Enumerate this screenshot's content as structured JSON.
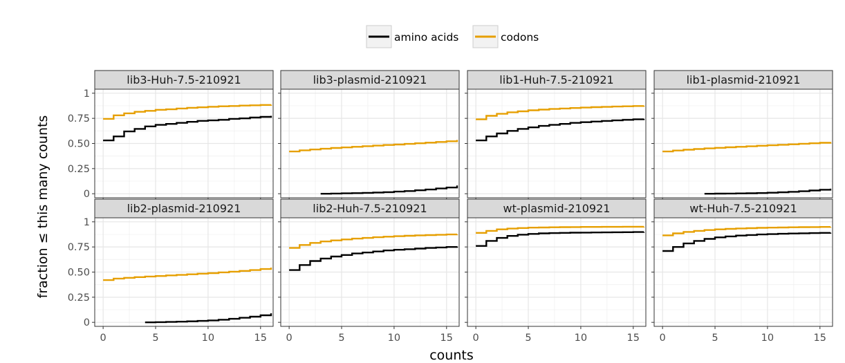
{
  "chart_data": {
    "type": "line",
    "subtype": "step-ecdf",
    "xlabel": "counts",
    "ylabel": "fraction ≤ this many counts",
    "xlim": [
      -0.8,
      16.2
    ],
    "ylim": [
      -0.04,
      1.04
    ],
    "x_ticks": [
      0,
      5,
      10,
      15
    ],
    "x_tick_labels": [
      "0",
      "5",
      "10",
      "15"
    ],
    "y_ticks": [
      0,
      0.25,
      0.5,
      0.75,
      1
    ],
    "y_tick_labels": [
      "0",
      "0.25",
      "0.50",
      "0.75",
      "1"
    ],
    "grid": true,
    "legend": {
      "placement": "top",
      "entries": [
        {
          "key": "amino_acids",
          "label": "amino acids",
          "color": "#000000"
        },
        {
          "key": "codons",
          "label": "codons",
          "color": "#e69f00"
        }
      ]
    },
    "facets": [
      {
        "title": "lib3-Huh-7.5-210921",
        "series": {
          "amino_acids": {
            "x": [
              0,
              1,
              2,
              3,
              4,
              5,
              6,
              7,
              8,
              9,
              10,
              11,
              12,
              13,
              14,
              15,
              16
            ],
            "y": [
              0.53,
              0.57,
              0.62,
              0.645,
              0.67,
              0.685,
              0.695,
              0.705,
              0.715,
              0.725,
              0.73,
              0.735,
              0.745,
              0.75,
              0.758,
              0.765,
              0.775
            ]
          },
          "codons": {
            "x": [
              0,
              1,
              2,
              3,
              4,
              5,
              6,
              7,
              8,
              9,
              10,
              11,
              12,
              13,
              14,
              15,
              16
            ],
            "y": [
              0.745,
              0.78,
              0.8,
              0.815,
              0.825,
              0.835,
              0.84,
              0.848,
              0.855,
              0.86,
              0.865,
              0.87,
              0.873,
              0.877,
              0.88,
              0.883,
              0.886
            ]
          }
        }
      },
      {
        "title": "lib3-plasmid-210921",
        "series": {
          "amino_acids": {
            "x": [
              3,
              4,
              5,
              6,
              7,
              8,
              9,
              10,
              11,
              12,
              13,
              14,
              15,
              16
            ],
            "y": [
              0.0,
              0.002,
              0.004,
              0.006,
              0.009,
              0.012,
              0.016,
              0.021,
              0.027,
              0.034,
              0.042,
              0.052,
              0.062,
              0.082
            ]
          },
          "codons": {
            "x": [
              0,
              1,
              2,
              3,
              4,
              5,
              6,
              7,
              8,
              9,
              10,
              11,
              12,
              13,
              14,
              15,
              16
            ],
            "y": [
              0.42,
              0.432,
              0.44,
              0.448,
              0.455,
              0.461,
              0.467,
              0.473,
              0.479,
              0.485,
              0.49,
              0.496,
              0.502,
              0.508,
              0.515,
              0.522,
              0.535
            ]
          }
        }
      },
      {
        "title": "lib1-Huh-7.5-210921",
        "series": {
          "amino_acids": {
            "x": [
              0,
              1,
              2,
              3,
              4,
              5,
              6,
              7,
              8,
              9,
              10,
              11,
              12,
              13,
              14,
              15,
              16
            ],
            "y": [
              0.53,
              0.57,
              0.6,
              0.625,
              0.645,
              0.66,
              0.675,
              0.685,
              0.695,
              0.705,
              0.712,
              0.718,
              0.724,
              0.73,
              0.735,
              0.74,
              0.745
            ]
          },
          "codons": {
            "x": [
              0,
              1,
              2,
              3,
              4,
              5,
              6,
              7,
              8,
              9,
              10,
              11,
              12,
              13,
              14,
              15,
              16
            ],
            "y": [
              0.74,
              0.775,
              0.795,
              0.81,
              0.82,
              0.83,
              0.837,
              0.843,
              0.848,
              0.853,
              0.857,
              0.861,
              0.864,
              0.867,
              0.87,
              0.873,
              0.876
            ]
          }
        }
      },
      {
        "title": "lib1-plasmid-210921",
        "series": {
          "amino_acids": {
            "x": [
              4,
              5,
              6,
              7,
              8,
              9,
              10,
              11,
              12,
              13,
              14,
              15,
              16
            ],
            "y": [
              0.0,
              0.001,
              0.002,
              0.003,
              0.005,
              0.007,
              0.01,
              0.014,
              0.019,
              0.025,
              0.032,
              0.04,
              0.05
            ]
          },
          "codons": {
            "x": [
              0,
              1,
              2,
              3,
              4,
              5,
              6,
              7,
              8,
              9,
              10,
              11,
              12,
              13,
              14,
              15,
              16
            ],
            "y": [
              0.42,
              0.43,
              0.438,
              0.445,
              0.451,
              0.457,
              0.462,
              0.467,
              0.472,
              0.477,
              0.482,
              0.487,
              0.492,
              0.497,
              0.502,
              0.507,
              0.515
            ]
          }
        }
      },
      {
        "title": "lib2-plasmid-210921",
        "series": {
          "amino_acids": {
            "x": [
              4,
              5,
              6,
              7,
              8,
              9,
              10,
              11,
              12,
              13,
              14,
              15,
              16
            ],
            "y": [
              0.0,
              0.002,
              0.004,
              0.007,
              0.01,
              0.014,
              0.019,
              0.026,
              0.035,
              0.045,
              0.056,
              0.07,
              0.09
            ]
          },
          "codons": {
            "x": [
              0,
              1,
              2,
              3,
              4,
              5,
              6,
              7,
              8,
              9,
              10,
              11,
              12,
              13,
              14,
              15,
              16
            ],
            "y": [
              0.42,
              0.435,
              0.443,
              0.45,
              0.456,
              0.461,
              0.467,
              0.472,
              0.478,
              0.484,
              0.49,
              0.497,
              0.504,
              0.512,
              0.52,
              0.53,
              0.545
            ]
          }
        }
      },
      {
        "title": "lib2-Huh-7.5-210921",
        "series": {
          "amino_acids": {
            "x": [
              0,
              1,
              2,
              3,
              4,
              5,
              6,
              7,
              8,
              9,
              10,
              11,
              12,
              13,
              14,
              15,
              16
            ],
            "y": [
              0.52,
              0.57,
              0.61,
              0.635,
              0.655,
              0.67,
              0.685,
              0.695,
              0.705,
              0.715,
              0.722,
              0.728,
              0.734,
              0.74,
              0.745,
              0.75,
              0.755
            ]
          },
          "codons": {
            "x": [
              0,
              1,
              2,
              3,
              4,
              5,
              6,
              7,
              8,
              9,
              10,
              11,
              12,
              13,
              14,
              15,
              16
            ],
            "y": [
              0.74,
              0.77,
              0.79,
              0.805,
              0.815,
              0.825,
              0.833,
              0.84,
              0.847,
              0.852,
              0.857,
              0.861,
              0.865,
              0.868,
              0.871,
              0.874,
              0.877
            ]
          }
        }
      },
      {
        "title": "wt-plasmid-210921",
        "series": {
          "amino_acids": {
            "x": [
              0,
              1,
              2,
              3,
              4,
              5,
              6,
              7,
              8,
              9,
              10,
              11,
              12,
              13,
              14,
              15,
              16
            ],
            "y": [
              0.76,
              0.81,
              0.84,
              0.86,
              0.872,
              0.88,
              0.885,
              0.888,
              0.89,
              0.892,
              0.893,
              0.894,
              0.895,
              0.896,
              0.897,
              0.898,
              0.9
            ]
          },
          "codons": {
            "x": [
              0,
              1,
              2,
              3,
              4,
              5,
              6,
              7,
              8,
              9,
              10,
              11,
              12,
              13,
              14,
              15,
              16
            ],
            "y": [
              0.89,
              0.91,
              0.925,
              0.933,
              0.938,
              0.942,
              0.944,
              0.946,
              0.947,
              0.948,
              0.949,
              0.949,
              0.95,
              0.95,
              0.951,
              0.951,
              0.952
            ]
          }
        }
      },
      {
        "title": "wt-Huh-7.5-210921",
        "series": {
          "amino_acids": {
            "x": [
              0,
              1,
              2,
              3,
              4,
              5,
              6,
              7,
              8,
              9,
              10,
              11,
              12,
              13,
              14,
              15,
              16
            ],
            "y": [
              0.71,
              0.75,
              0.785,
              0.81,
              0.83,
              0.845,
              0.855,
              0.863,
              0.869,
              0.874,
              0.878,
              0.881,
              0.884,
              0.886,
              0.888,
              0.89,
              0.892
            ]
          },
          "codons": {
            "x": [
              0,
              1,
              2,
              3,
              4,
              5,
              6,
              7,
              8,
              9,
              10,
              11,
              12,
              13,
              14,
              15,
              16
            ],
            "y": [
              0.865,
              0.885,
              0.9,
              0.91,
              0.918,
              0.925,
              0.93,
              0.934,
              0.937,
              0.94,
              0.942,
              0.944,
              0.946,
              0.947,
              0.948,
              0.949,
              0.95
            ]
          }
        }
      }
    ]
  }
}
